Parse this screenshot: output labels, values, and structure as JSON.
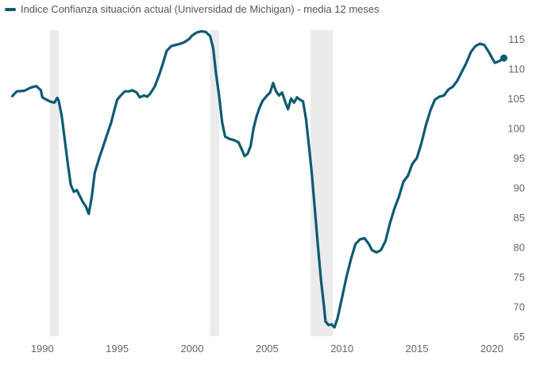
{
  "chart_data": {
    "type": "line",
    "series": [
      {
        "name": "Indice Confianza situación actual (Universidad de Michigan) - media 12 meses",
        "color": "#0c5a72",
        "points": [
          [
            1988.0,
            105.4
          ],
          [
            1988.3,
            106.2
          ],
          [
            1988.8,
            106.3
          ],
          [
            1989.2,
            106.8
          ],
          [
            1989.6,
            107.1
          ],
          [
            1989.9,
            106.4
          ],
          [
            1990.0,
            105.2
          ],
          [
            1990.2,
            104.9
          ],
          [
            1990.5,
            104.5
          ],
          [
            1990.8,
            104.3
          ],
          [
            1991.0,
            105.1
          ],
          [
            1991.1,
            104.6
          ],
          [
            1991.3,
            102.0
          ],
          [
            1991.5,
            98.0
          ],
          [
            1991.7,
            94.0
          ],
          [
            1991.9,
            90.5
          ],
          [
            1992.1,
            89.3
          ],
          [
            1992.3,
            89.6
          ],
          [
            1992.5,
            88.6
          ],
          [
            1992.7,
            87.6
          ],
          [
            1992.9,
            86.9
          ],
          [
            1993.0,
            86.2
          ],
          [
            1993.1,
            85.6
          ],
          [
            1993.3,
            88.5
          ],
          [
            1993.5,
            92.5
          ],
          [
            1993.8,
            95.0
          ],
          [
            1994.0,
            96.5
          ],
          [
            1994.2,
            98.0
          ],
          [
            1994.4,
            99.5
          ],
          [
            1994.6,
            101.0
          ],
          [
            1994.8,
            103.0
          ],
          [
            1995.0,
            104.8
          ],
          [
            1995.2,
            105.4
          ],
          [
            1995.5,
            106.2
          ],
          [
            1995.8,
            106.2
          ],
          [
            1996.0,
            106.4
          ],
          [
            1996.3,
            106.0
          ],
          [
            1996.5,
            105.2
          ],
          [
            1996.8,
            105.5
          ],
          [
            1997.0,
            105.3
          ],
          [
            1997.2,
            105.8
          ],
          [
            1997.5,
            107.0
          ],
          [
            1997.8,
            109.0
          ],
          [
            1998.0,
            110.5
          ],
          [
            1998.3,
            113.0
          ],
          [
            1998.6,
            113.8
          ],
          [
            1998.9,
            114.0
          ],
          [
            1999.2,
            114.2
          ],
          [
            1999.5,
            114.5
          ],
          [
            1999.8,
            115.0
          ],
          [
            2000.0,
            115.6
          ],
          [
            2000.3,
            116.1
          ],
          [
            2000.6,
            116.3
          ],
          [
            2000.9,
            116.2
          ],
          [
            2001.2,
            115.5
          ],
          [
            2001.4,
            113.5
          ],
          [
            2001.6,
            109.0
          ],
          [
            2001.8,
            105.5
          ],
          [
            2002.0,
            101.0
          ],
          [
            2002.2,
            98.6
          ],
          [
            2002.5,
            98.2
          ],
          [
            2002.8,
            98.0
          ],
          [
            2003.1,
            97.6
          ],
          [
            2003.3,
            96.5
          ],
          [
            2003.5,
            95.3
          ],
          [
            2003.7,
            95.7
          ],
          [
            2003.9,
            97.0
          ],
          [
            2004.1,
            100.0
          ],
          [
            2004.3,
            102.0
          ],
          [
            2004.5,
            103.5
          ],
          [
            2004.7,
            104.6
          ],
          [
            2005.0,
            105.5
          ],
          [
            2005.2,
            106.0
          ],
          [
            2005.4,
            107.6
          ],
          [
            2005.6,
            106.2
          ],
          [
            2005.8,
            105.5
          ],
          [
            2006.0,
            106.0
          ],
          [
            2006.2,
            104.5
          ],
          [
            2006.4,
            103.2
          ],
          [
            2006.6,
            105.0
          ],
          [
            2006.8,
            104.3
          ],
          [
            2007.0,
            105.2
          ],
          [
            2007.2,
            104.8
          ],
          [
            2007.4,
            104.5
          ],
          [
            2007.6,
            101.5
          ],
          [
            2007.8,
            97.0
          ],
          [
            2008.0,
            92.0
          ],
          [
            2008.2,
            86.0
          ],
          [
            2008.4,
            80.0
          ],
          [
            2008.6,
            74.5
          ],
          [
            2008.8,
            70.0
          ],
          [
            2008.9,
            67.5
          ],
          [
            2009.1,
            66.9
          ],
          [
            2009.3,
            67.0
          ],
          [
            2009.5,
            66.5
          ],
          [
            2009.7,
            68.0
          ],
          [
            2010.0,
            71.5
          ],
          [
            2010.3,
            75.0
          ],
          [
            2010.6,
            78.0
          ],
          [
            2010.9,
            80.5
          ],
          [
            2011.2,
            81.3
          ],
          [
            2011.5,
            81.5
          ],
          [
            2011.8,
            80.5
          ],
          [
            2012.0,
            79.5
          ],
          [
            2012.3,
            79.1
          ],
          [
            2012.6,
            79.5
          ],
          [
            2012.9,
            81.0
          ],
          [
            2013.2,
            84.0
          ],
          [
            2013.5,
            86.5
          ],
          [
            2013.8,
            88.5
          ],
          [
            2014.1,
            91.0
          ],
          [
            2014.4,
            92.0
          ],
          [
            2014.7,
            94.0
          ],
          [
            2015.0,
            95.0
          ],
          [
            2015.3,
            97.5
          ],
          [
            2015.6,
            100.5
          ],
          [
            2015.9,
            103.0
          ],
          [
            2016.2,
            104.8
          ],
          [
            2016.5,
            105.3
          ],
          [
            2016.8,
            105.5
          ],
          [
            2017.1,
            106.5
          ],
          [
            2017.4,
            107.0
          ],
          [
            2017.7,
            108.0
          ],
          [
            2018.0,
            109.5
          ],
          [
            2018.3,
            111.0
          ],
          [
            2018.6,
            112.8
          ],
          [
            2018.9,
            113.8
          ],
          [
            2019.2,
            114.2
          ],
          [
            2019.5,
            114.0
          ],
          [
            2019.8,
            112.8
          ],
          [
            2020.0,
            111.9
          ],
          [
            2020.2,
            111.0
          ],
          [
            2020.5,
            111.3
          ],
          [
            2020.8,
            111.8
          ]
        ]
      }
    ],
    "recession_bands": [
      [
        1990.5,
        1991.1
      ],
      [
        2001.2,
        2001.8
      ],
      [
        2007.9,
        2009.4
      ]
    ],
    "x_ticks": [
      1990,
      1995,
      2000,
      2005,
      2010,
      2015,
      2020
    ],
    "y_ticks": [
      65,
      70,
      75,
      80,
      85,
      90,
      95,
      100,
      105,
      110,
      115
    ],
    "xlim": [
      1987.6,
      2020.3
    ],
    "ylim": [
      65,
      116.5
    ],
    "y_axis_side": "right",
    "grid": false,
    "legend_position": "top-left",
    "band_color": "#ebebeb"
  }
}
